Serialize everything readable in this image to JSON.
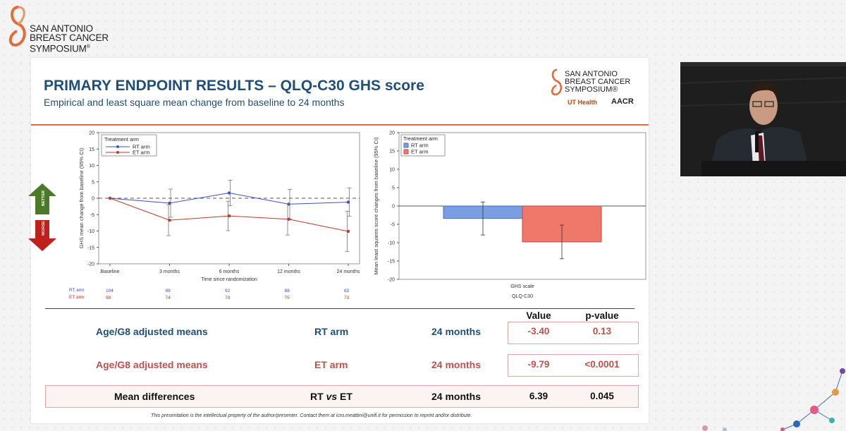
{
  "logo": {
    "line1": "SAN ANTONIO",
    "line2": "BREAST CANCER",
    "line3": "SYMPOSIUM",
    "reg": "®"
  },
  "slide": {
    "title": "PRIMARY ENDPOINT RESULTS – QLQ-C30 GHS score",
    "subtitle": "Empirical and least square mean change from baseline to 24 months",
    "logo": {
      "line1": "SAN ANTONIO",
      "line2": "BREAST CANCER",
      "line3": "SYMPOSIUM®",
      "ut": "UT Health",
      "aacr": "AACR"
    },
    "arrows": {
      "better": "BETTER",
      "worse": "WORSE"
    },
    "counts": {
      "rt_label": "RT arm",
      "et_label": "ET arm",
      "rt": [
        "104",
        "88",
        "92",
        "88",
        "82"
      ],
      "et": [
        "99",
        "74",
        "79",
        "75",
        "73"
      ]
    },
    "table": {
      "headers": {
        "value": "Value",
        "pvalue": "p-value"
      },
      "rows": [
        {
          "label": "Age/G8 adjusted means",
          "arm": "RT arm",
          "time": "24 months",
          "value": "-3.40",
          "pvalue": "0.13"
        },
        {
          "label": "Age/G8 adjusted means",
          "arm": "ET arm",
          "time": "24 months",
          "value": "-9.79",
          "pvalue": "<0.0001"
        },
        {
          "label": "Mean differences",
          "arm_a": "RT",
          "arm_vs": "vs",
          "arm_b": "ET",
          "time": "24 months",
          "value": "6.39",
          "pvalue": "0.045"
        }
      ]
    },
    "footer": "This presentation is the intellectual property of the author/presenter. Contact them at icro.meattini@unifi.it for permission to reprint and/or distribute."
  },
  "colors": {
    "rt": "#3b4fd1",
    "et": "#c0392b",
    "title": "#1f4e79",
    "accent": "#e36c3a"
  },
  "chart_data": [
    {
      "type": "line",
      "ylabel": "GHS mean change from baseline (95% CI)",
      "xlabel": "Time since randomization",
      "categories": [
        "Baseline",
        "3 months",
        "6 months",
        "12 months",
        "24 months"
      ],
      "ylim": [
        -20,
        20
      ],
      "yticks": [
        -20,
        -15,
        -10,
        -5,
        0,
        5,
        10,
        15,
        20
      ],
      "legend_title": "Treatment arm",
      "legend_position": "top-left",
      "series": [
        {
          "name": "RT arm",
          "values": [
            0,
            -1.5,
            1.6,
            -1.8,
            -1.2
          ],
          "ci_low": [
            0,
            -5.8,
            -2.3,
            -6.3,
            -5.5
          ],
          "ci_high": [
            0,
            2.8,
            5.5,
            2.7,
            3.1
          ]
        },
        {
          "name": "ET arm",
          "values": [
            0,
            -6.7,
            -5.4,
            -6.4,
            -10.1
          ],
          "ci_low": [
            0,
            -11.4,
            -9.9,
            -11.2,
            -16.2
          ],
          "ci_high": [
            0,
            -2.0,
            -0.9,
            -1.6,
            -4.0
          ]
        }
      ]
    },
    {
      "type": "bar",
      "ylabel": "Mean least squares score changes from baseline (95% CI)",
      "xlabel": "QLQ-C30",
      "categories": [
        "GHS scale"
      ],
      "ylim": [
        -20,
        20
      ],
      "yticks": [
        -20,
        -15,
        -10,
        -5,
        0,
        5,
        10,
        15,
        20
      ],
      "legend_title": "Treatment arm",
      "legend_position": "top-left",
      "series": [
        {
          "name": "RT arm",
          "values": [
            -3.4
          ],
          "ci_low": [
            -7.9
          ],
          "ci_high": [
            1.1
          ]
        },
        {
          "name": "ET arm",
          "values": [
            -9.79
          ],
          "ci_low": [
            -14.4
          ],
          "ci_high": [
            -5.2
          ]
        }
      ]
    }
  ]
}
